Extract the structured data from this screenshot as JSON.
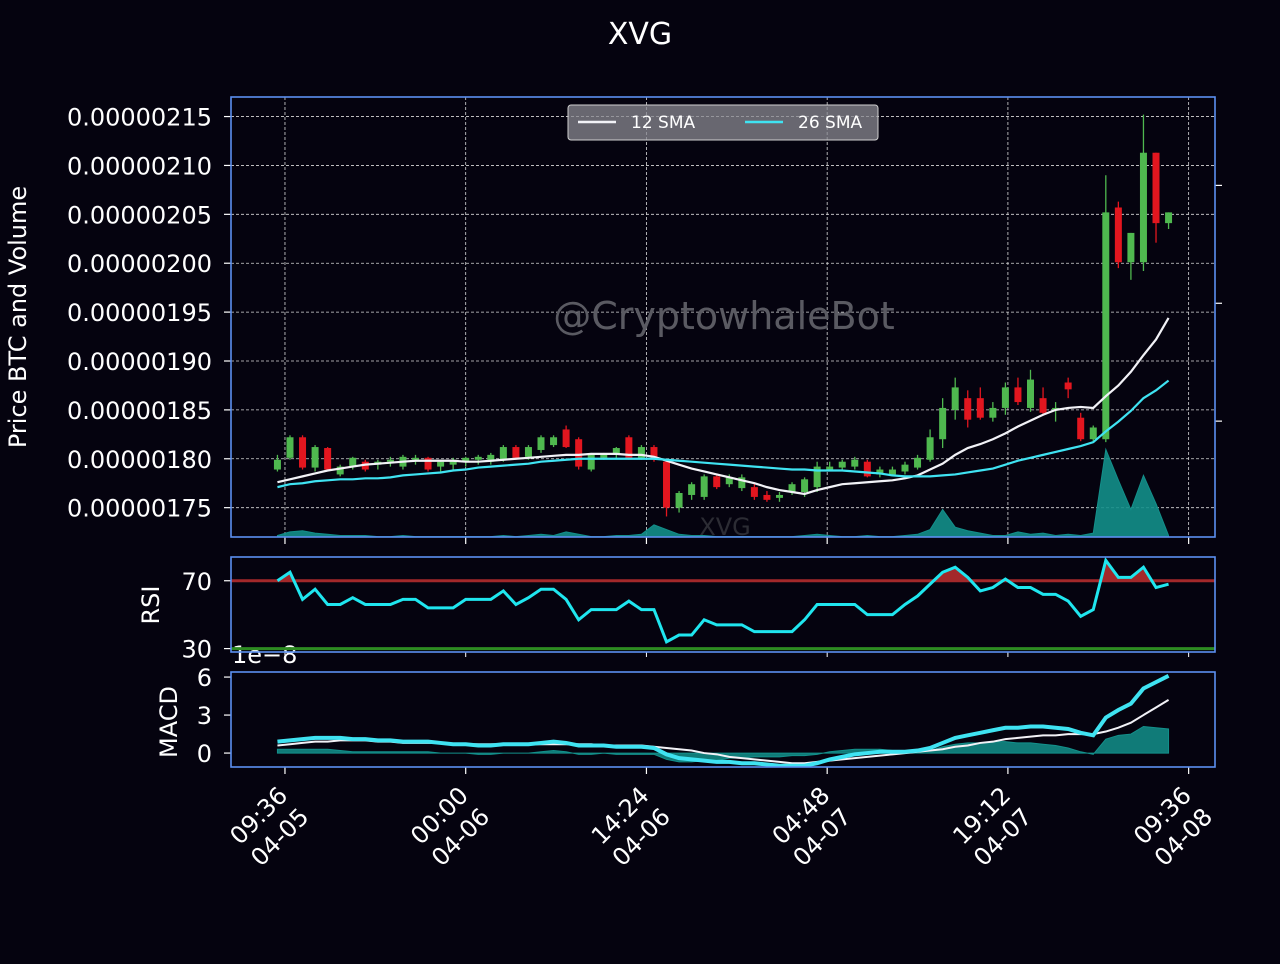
{
  "chart_data": [
    {
      "type": "candlestick",
      "title": "XVG",
      "ylabel": "Price BTC and Volume",
      "watermark": "@CryptowhaleBot",
      "volume_watermark": "XVG",
      "grid": true,
      "legend": "upper center",
      "x": [
        0,
        1,
        2,
        3,
        4,
        5,
        6,
        7,
        8,
        9,
        10,
        11,
        12,
        13,
        14,
        15,
        16,
        17,
        18,
        19,
        20,
        21,
        22,
        23,
        24,
        25,
        26,
        27,
        28,
        29,
        30,
        31,
        32,
        33,
        34,
        35,
        36,
        37,
        38,
        39,
        40,
        41,
        42,
        43,
        44,
        45,
        46,
        47,
        48,
        49,
        50,
        51,
        52,
        53,
        54,
        55,
        56,
        57,
        58,
        59,
        60,
        61,
        62,
        63,
        64,
        65,
        66,
        67,
        68,
        69,
        70,
        71
      ],
      "xlim": [
        -3.7,
        74.7
      ],
      "xticks": [
        {
          "value": 0.6,
          "label": [
            "09:36",
            "04-05"
          ]
        },
        {
          "value": 15,
          "label": [
            "00:00",
            "04-06"
          ]
        },
        {
          "value": 29.4,
          "label": [
            "14:24",
            "04-06"
          ]
        },
        {
          "value": 43.8,
          "label": [
            "04:48",
            "04-07"
          ]
        },
        {
          "value": 58.2,
          "label": [
            "19:12",
            "04-07"
          ]
        },
        {
          "value": 72.6,
          "label": [
            "09:36",
            "04-08"
          ]
        }
      ],
      "ylim": [
        1.72e-06,
        2.17e-06
      ],
      "yticks": [
        {
          "value": 1.75e-06,
          "label": "0.00000175"
        },
        {
          "value": 1.8e-06,
          "label": "0.00000180"
        },
        {
          "value": 1.85e-06,
          "label": "0.00000185"
        },
        {
          "value": 1.9e-06,
          "label": "0.00000190"
        },
        {
          "value": 1.95e-06,
          "label": "0.00000195"
        },
        {
          "value": 2e-06,
          "label": "0.00000200"
        },
        {
          "value": 2.05e-06,
          "label": "0.00000205"
        },
        {
          "value": 2.1e-06,
          "label": "0.00000210"
        },
        {
          "value": 2.15e-06,
          "label": "0.00000215"
        }
      ],
      "up_color": "#4fb84f",
      "down_color": "#e3161f",
      "open": [
        1.789e-06,
        1.801e-06,
        1.822e-06,
        1.791e-06,
        1.811e-06,
        1.784e-06,
        1.792e-06,
        1.797e-06,
        1.794e-06,
        1.797e-06,
        1.792e-06,
        1.799e-06,
        1.801e-06,
        1.792e-06,
        1.794e-06,
        1.797e-06,
        1.799e-06,
        1.797e-06,
        1.799e-06,
        1.812e-06,
        1.802e-06,
        1.809e-06,
        1.814e-06,
        1.83e-06,
        1.82e-06,
        1.789e-06,
        1.801e-06,
        1.804e-06,
        1.822e-06,
        1.801e-06,
        1.812e-06,
        1.797e-06,
        1.75e-06,
        1.763e-06,
        1.761e-06,
        1.782e-06,
        1.774e-06,
        1.77e-06,
        1.771e-06,
        1.763e-06,
        1.76e-06,
        1.766e-06,
        1.766e-06,
        1.771e-06,
        1.789e-06,
        1.791e-06,
        1.792e-06,
        1.797e-06,
        1.784e-06,
        1.784e-06,
        1.787e-06,
        1.791e-06,
        1.799e-06,
        1.82e-06,
        1.85e-06,
        1.862e-06,
        1.862e-06,
        1.842e-06,
        1.852e-06,
        1.873e-06,
        1.852e-06,
        1.862e-06,
        1.85e-06,
        1.878e-06,
        1.842e-06,
        1.82e-06,
        1.82e-06,
        2.057e-06,
        2.001e-06,
        2.001e-06,
        2.113e-06,
        2.041e-06
      ],
      "high": [
        1.804e-06,
        1.824e-06,
        1.824e-06,
        1.814e-06,
        1.812e-06,
        1.794e-06,
        1.802e-06,
        1.799e-06,
        1.799e-06,
        1.802e-06,
        1.804e-06,
        1.804e-06,
        1.802e-06,
        1.799e-06,
        1.801e-06,
        1.802e-06,
        1.804e-06,
        1.806e-06,
        1.814e-06,
        1.814e-06,
        1.814e-06,
        1.824e-06,
        1.824e-06,
        1.834e-06,
        1.822e-06,
        1.806e-06,
        1.806e-06,
        1.812e-06,
        1.824e-06,
        1.814e-06,
        1.814e-06,
        1.799e-06,
        1.767e-06,
        1.776e-06,
        1.784e-06,
        1.784e-06,
        1.784e-06,
        1.784e-06,
        1.774e-06,
        1.767e-06,
        1.766e-06,
        1.776e-06,
        1.781e-06,
        1.797e-06,
        1.797e-06,
        1.799e-06,
        1.802e-06,
        1.799e-06,
        1.792e-06,
        1.792e-06,
        1.797e-06,
        1.804e-06,
        1.83e-06,
        1.862e-06,
        1.883e-06,
        1.87e-06,
        1.873e-06,
        1.858e-06,
        1.878e-06,
        1.883e-06,
        1.891e-06,
        1.873e-06,
        1.858e-06,
        1.883e-06,
        1.847e-06,
        1.834e-06,
        2.09e-06,
        2.063e-06,
        2.031e-06,
        2.152e-06,
        2.113e-06,
        2.052e-06
      ],
      "low": [
        1.787e-06,
        1.799e-06,
        1.789e-06,
        1.787e-06,
        1.787e-06,
        1.782e-06,
        1.789e-06,
        1.787e-06,
        1.789e-06,
        1.792e-06,
        1.789e-06,
        1.794e-06,
        1.787e-06,
        1.787e-06,
        1.789e-06,
        1.792e-06,
        1.794e-06,
        1.794e-06,
        1.797e-06,
        1.799e-06,
        1.799e-06,
        1.806e-06,
        1.812e-06,
        1.811e-06,
        1.789e-06,
        1.787e-06,
        1.799e-06,
        1.801e-06,
        1.799e-06,
        1.799e-06,
        1.797e-06,
        1.741e-06,
        1.745e-06,
        1.758e-06,
        1.758e-06,
        1.769e-06,
        1.771e-06,
        1.767e-06,
        1.758e-06,
        1.756e-06,
        1.756e-06,
        1.763e-06,
        1.761e-06,
        1.766e-06,
        1.787e-06,
        1.787e-06,
        1.789e-06,
        1.781e-06,
        1.781e-06,
        1.782e-06,
        1.784e-06,
        1.789e-06,
        1.797e-06,
        1.811e-06,
        1.84e-06,
        1.832e-06,
        1.84e-06,
        1.838e-06,
        1.845e-06,
        1.855e-06,
        1.848e-06,
        1.845e-06,
        1.838e-06,
        1.862e-06,
        1.818e-06,
        1.818e-06,
        1.817e-06,
        1.995e-06,
        1.983e-06,
        1.992e-06,
        2.021e-06,
        2.035e-06
      ],
      "close": [
        1.799e-06,
        1.822e-06,
        1.791e-06,
        1.812e-06,
        1.789e-06,
        1.792e-06,
        1.801e-06,
        1.789e-06,
        1.797e-06,
        1.799e-06,
        1.802e-06,
        1.801e-06,
        1.789e-06,
        1.797e-06,
        1.799e-06,
        1.801e-06,
        1.802e-06,
        1.804e-06,
        1.812e-06,
        1.801e-06,
        1.812e-06,
        1.822e-06,
        1.822e-06,
        1.812e-06,
        1.792e-06,
        1.804e-06,
        1.804e-06,
        1.811e-06,
        1.801e-06,
        1.812e-06,
        1.799e-06,
        1.75e-06,
        1.765e-06,
        1.774e-06,
        1.782e-06,
        1.771e-06,
        1.781e-06,
        1.781e-06,
        1.761e-06,
        1.758e-06,
        1.763e-06,
        1.774e-06,
        1.779e-06,
        1.792e-06,
        1.792e-06,
        1.797e-06,
        1.799e-06,
        1.782e-06,
        1.789e-06,
        1.789e-06,
        1.794e-06,
        1.801e-06,
        1.822e-06,
        1.852e-06,
        1.873e-06,
        1.84e-06,
        1.842e-06,
        1.852e-06,
        1.873e-06,
        1.858e-06,
        1.881e-06,
        1.847e-06,
        1.852e-06,
        1.871e-06,
        1.82e-06,
        1.832e-06,
        2.052e-06,
        2.001e-06,
        2.031e-06,
        2.113e-06,
        2.041e-06,
        2.052e-06
      ],
      "series": [
        {
          "name": "12 SMA",
          "color": "#f2f2f7",
          "values": [
            1.776e-06,
            1.779e-06,
            1.782e-06,
            1.785e-06,
            1.788e-06,
            1.79e-06,
            1.792e-06,
            1.794e-06,
            1.795e-06,
            1.796e-06,
            1.797e-06,
            1.798e-06,
            1.798e-06,
            1.798e-06,
            1.798e-06,
            1.797e-06,
            1.797e-06,
            1.798e-06,
            1.799e-06,
            1.8e-06,
            1.801e-06,
            1.802e-06,
            1.803e-06,
            1.804e-06,
            1.804e-06,
            1.805e-06,
            1.805e-06,
            1.805e-06,
            1.804e-06,
            1.804e-06,
            1.802e-06,
            1.798e-06,
            1.794e-06,
            1.79e-06,
            1.787e-06,
            1.784e-06,
            1.781e-06,
            1.778e-06,
            1.775e-06,
            1.771e-06,
            1.768e-06,
            1.766e-06,
            1.764e-06,
            1.768e-06,
            1.771e-06,
            1.774e-06,
            1.775e-06,
            1.776e-06,
            1.777e-06,
            1.778e-06,
            1.78e-06,
            1.783e-06,
            1.789e-06,
            1.795e-06,
            1.804e-06,
            1.811e-06,
            1.815e-06,
            1.82e-06,
            1.826e-06,
            1.833e-06,
            1.839e-06,
            1.845e-06,
            1.85e-06,
            1.852e-06,
            1.853e-06,
            1.852e-06,
            1.864e-06,
            1.875e-06,
            1.889e-06,
            1.906e-06,
            1.922e-06,
            1.944e-06
          ]
        },
        {
          "name": "26 SMA",
          "color": "#3fe3f2",
          "values": [
            1.771e-06,
            1.774e-06,
            1.775e-06,
            1.777e-06,
            1.778e-06,
            1.779e-06,
            1.779e-06,
            1.78e-06,
            1.78e-06,
            1.781e-06,
            1.783e-06,
            1.784e-06,
            1.785e-06,
            1.786e-06,
            1.788e-06,
            1.789e-06,
            1.791e-06,
            1.792e-06,
            1.793e-06,
            1.794e-06,
            1.795e-06,
            1.797e-06,
            1.798e-06,
            1.799e-06,
            1.8e-06,
            1.8e-06,
            1.8e-06,
            1.8e-06,
            1.8e-06,
            1.8e-06,
            1.8e-06,
            1.799e-06,
            1.798e-06,
            1.797e-06,
            1.796e-06,
            1.795e-06,
            1.794e-06,
            1.793e-06,
            1.792e-06,
            1.791e-06,
            1.79e-06,
            1.789e-06,
            1.789e-06,
            1.788e-06,
            1.788e-06,
            1.788e-06,
            1.787e-06,
            1.786e-06,
            1.785e-06,
            1.783e-06,
            1.782e-06,
            1.782e-06,
            1.782e-06,
            1.783e-06,
            1.784e-06,
            1.786e-06,
            1.788e-06,
            1.79e-06,
            1.794e-06,
            1.798e-06,
            1.801e-06,
            1.804e-06,
            1.807e-06,
            1.81e-06,
            1.813e-06,
            1.817e-06,
            1.828e-06,
            1.838e-06,
            1.849e-06,
            1.862e-06,
            1.87e-06,
            1.88e-06
          ]
        }
      ],
      "volume": {
        "axis": "y2",
        "color": "#138f8a",
        "values": [
          0.03,
          0.06,
          0.07,
          0.05,
          0.04,
          0.03,
          0.03,
          0.03,
          0.02,
          0.02,
          0.03,
          0.02,
          0.02,
          0.02,
          0.02,
          0.02,
          0.02,
          0.02,
          0.03,
          0.02,
          0.03,
          0.04,
          0.03,
          0.06,
          0.04,
          0.02,
          0.02,
          0.03,
          0.03,
          0.04,
          0.12,
          0.08,
          0.04,
          0.03,
          0.03,
          0.02,
          0.02,
          0.02,
          0.02,
          0.02,
          0.02,
          0.02,
          0.03,
          0.04,
          0.03,
          0.02,
          0.02,
          0.03,
          0.02,
          0.02,
          0.03,
          0.04,
          0.08,
          0.25,
          0.1,
          0.07,
          0.05,
          0.03,
          0.03,
          0.06,
          0.04,
          0.05,
          0.03,
          0.04,
          0.03,
          0.05,
          0.76,
          0.5,
          0.25,
          0.54,
          0.3,
          0.03
        ]
      },
      "y2lim": [
        0,
        3.75
      ],
      "y2ticks": [
        1,
        2,
        3
      ]
    },
    {
      "type": "rsi",
      "ylabel": "RSI",
      "ylim": [
        28,
        84
      ],
      "yticks": [
        30,
        70
      ],
      "color": "#1fe6ef",
      "overbought": 70,
      "oversold": 30,
      "overbought_color": "#a3282a",
      "oversold_color": "#2e8b22",
      "values": [
        70,
        75,
        59,
        65,
        56,
        56,
        60,
        56,
        56,
        56,
        59,
        59,
        54,
        54,
        54,
        59,
        59,
        59,
        64,
        56,
        60,
        65,
        65,
        59,
        47,
        53,
        53,
        53,
        58,
        53,
        53,
        34,
        38,
        38,
        47,
        44,
        44,
        44,
        40,
        40,
        40,
        40,
        47,
        56,
        56,
        56,
        56,
        50,
        50,
        50,
        56,
        61,
        68,
        75,
        78,
        72,
        64,
        66,
        71,
        66,
        66,
        62,
        62,
        58,
        49,
        53,
        82,
        72,
        72,
        78,
        66,
        68
      ]
    },
    {
      "type": "macd",
      "ylabel": "MACD",
      "offset_label": "1e−8",
      "ylim": [
        -1.1,
        6.4
      ],
      "yticks": [
        0,
        3,
        6
      ],
      "macd": {
        "color": "#3fe3f2",
        "values": [
          0.9,
          1.0,
          1.1,
          1.2,
          1.2,
          1.2,
          1.1,
          1.1,
          1.0,
          1.0,
          0.9,
          0.9,
          0.9,
          0.8,
          0.7,
          0.7,
          0.6,
          0.6,
          0.7,
          0.7,
          0.7,
          0.8,
          0.9,
          0.8,
          0.6,
          0.6,
          0.6,
          0.5,
          0.5,
          0.5,
          0.4,
          -0.1,
          -0.4,
          -0.5,
          -0.6,
          -0.7,
          -0.7,
          -0.8,
          -0.8,
          -0.9,
          -1.0,
          -1.0,
          -1.0,
          -0.8,
          -0.5,
          -0.3,
          -0.1,
          0.0,
          0.1,
          0.1,
          0.1,
          0.2,
          0.4,
          0.8,
          1.2,
          1.4,
          1.6,
          1.8,
          2.0,
          2.0,
          2.1,
          2.1,
          2.0,
          1.9,
          1.6,
          1.4,
          2.8,
          3.4,
          3.9,
          5.1,
          5.6,
          6.1
        ]
      },
      "signal": {
        "color": "#f2f2f7",
        "values": [
          0.6,
          0.7,
          0.8,
          0.9,
          0.9,
          1.0,
          1.0,
          1.0,
          0.9,
          0.9,
          0.8,
          0.8,
          0.8,
          0.8,
          0.7,
          0.7,
          0.7,
          0.7,
          0.7,
          0.7,
          0.7,
          0.7,
          0.7,
          0.7,
          0.7,
          0.7,
          0.6,
          0.6,
          0.6,
          0.6,
          0.5,
          0.4,
          0.3,
          0.2,
          0.0,
          -0.1,
          -0.3,
          -0.4,
          -0.5,
          -0.6,
          -0.7,
          -0.8,
          -0.8,
          -0.7,
          -0.6,
          -0.5,
          -0.4,
          -0.3,
          -0.2,
          -0.1,
          0.0,
          0.1,
          0.2,
          0.3,
          0.5,
          0.6,
          0.8,
          0.9,
          1.1,
          1.2,
          1.3,
          1.4,
          1.4,
          1.5,
          1.5,
          1.5,
          1.7,
          2.0,
          2.4,
          3.0,
          3.6,
          4.2
        ]
      },
      "histogram": {
        "color": "#13908b",
        "values": [
          0.3,
          0.3,
          0.3,
          0.3,
          0.3,
          0.2,
          0.1,
          0.1,
          0.1,
          0.1,
          0.1,
          0.1,
          0.1,
          0.0,
          0.0,
          0.0,
          -0.1,
          -0.1,
          0.0,
          0.0,
          0.0,
          0.1,
          0.2,
          0.1,
          -0.1,
          -0.1,
          0.0,
          -0.1,
          -0.1,
          -0.1,
          -0.1,
          -0.5,
          -0.7,
          -0.7,
          -0.6,
          -0.6,
          -0.4,
          -0.4,
          -0.3,
          -0.3,
          -0.3,
          -0.2,
          -0.2,
          -0.1,
          0.1,
          0.2,
          0.3,
          0.3,
          0.3,
          0.2,
          0.1,
          0.1,
          0.2,
          0.5,
          0.7,
          0.8,
          0.8,
          0.9,
          0.9,
          0.8,
          0.8,
          0.7,
          0.6,
          0.4,
          0.1,
          -0.1,
          1.1,
          1.4,
          1.5,
          2.1,
          2.0,
          1.9
        ]
      }
    }
  ]
}
